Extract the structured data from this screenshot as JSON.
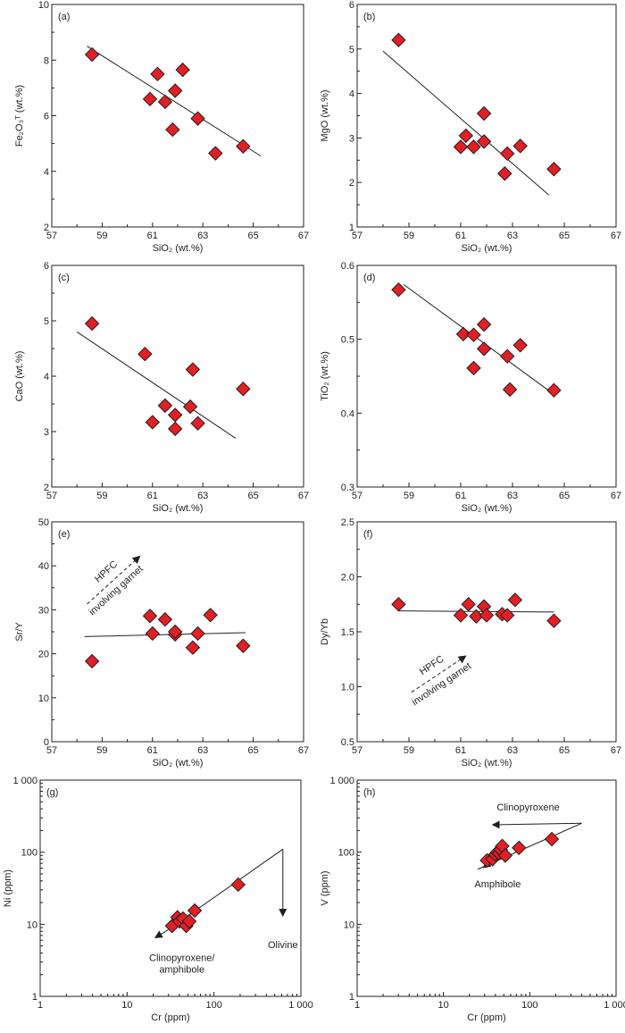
{
  "colors": {
    "marker_fill": "#e31e24",
    "marker_stroke": "#231f20",
    "line": "#231f20"
  },
  "chart_data": [
    {
      "id": "a",
      "type": "scatter",
      "panel_label": "(a)",
      "xlabel": "SiO₂ (wt.%)",
      "ylabel": "Fe₂O₃ᵀ (wt.%)",
      "xlim": [
        57,
        67
      ],
      "ylim": [
        2,
        10
      ],
      "xticks": [
        "57",
        "59",
        "61",
        "63",
        "65",
        "67"
      ],
      "yticks": [
        "2",
        "4",
        "6",
        "8",
        "10"
      ],
      "points": [
        [
          58.6,
          8.2
        ],
        [
          60.9,
          6.6
        ],
        [
          61.2,
          7.5
        ],
        [
          61.5,
          6.5
        ],
        [
          61.8,
          5.5
        ],
        [
          61.9,
          6.9
        ],
        [
          62.2,
          7.65
        ],
        [
          62.8,
          5.9
        ],
        [
          63.5,
          4.65
        ],
        [
          64.6,
          4.9
        ]
      ],
      "trend": [
        [
          58.4,
          8.5
        ],
        [
          65.3,
          4.55
        ]
      ]
    },
    {
      "id": "b",
      "type": "scatter",
      "panel_label": "(b)",
      "xlabel": "SiO₂ (wt.%)",
      "ylabel": "MgO (wt.%)",
      "xlim": [
        57,
        67
      ],
      "ylim": [
        1,
        6
      ],
      "xticks": [
        "57",
        "59",
        "61",
        "63",
        "65",
        "67"
      ],
      "yticks": [
        "1",
        "2",
        "3",
        "4",
        "5",
        "6"
      ],
      "points": [
        [
          58.6,
          5.2
        ],
        [
          61.0,
          2.8
        ],
        [
          61.2,
          3.05
        ],
        [
          61.5,
          2.8
        ],
        [
          61.9,
          2.92
        ],
        [
          61.9,
          3.55
        ],
        [
          62.7,
          2.2
        ],
        [
          62.8,
          2.65
        ],
        [
          63.3,
          2.82
        ],
        [
          64.6,
          2.3
        ]
      ],
      "trend": [
        [
          58.0,
          4.95
        ],
        [
          64.4,
          1.72
        ]
      ]
    },
    {
      "id": "c",
      "type": "scatter",
      "panel_label": "(c)",
      "xlabel": "SiO₂ (wt.%)",
      "ylabel": "CaO (wt.%)",
      "xlim": [
        57,
        67
      ],
      "ylim": [
        2,
        6
      ],
      "xticks": [
        "57",
        "59",
        "61",
        "63",
        "65",
        "67"
      ],
      "yticks": [
        "2",
        "3",
        "4",
        "5",
        "6"
      ],
      "points": [
        [
          58.6,
          4.95
        ],
        [
          60.7,
          4.4
        ],
        [
          61.0,
          3.17
        ],
        [
          61.5,
          3.47
        ],
        [
          61.9,
          3.05
        ],
        [
          61.9,
          3.3
        ],
        [
          62.5,
          3.45
        ],
        [
          62.6,
          4.12
        ],
        [
          62.8,
          3.15
        ],
        [
          64.6,
          3.77
        ]
      ],
      "trend": [
        [
          58.0,
          4.8
        ],
        [
          64.3,
          2.88
        ]
      ]
    },
    {
      "id": "d",
      "type": "scatter",
      "panel_label": "(d)",
      "xlabel": "SiO₂ (wt.%)",
      "ylabel": "TiO₂ (wt.%)",
      "xlim": [
        57,
        67
      ],
      "ylim": [
        0.3,
        0.6
      ],
      "xticks": [
        "57",
        "59",
        "61",
        "63",
        "65",
        "67"
      ],
      "yticks": [
        "0.3",
        "0.4",
        "0.5",
        "0.6"
      ],
      "points": [
        [
          58.6,
          0.567
        ],
        [
          61.1,
          0.507
        ],
        [
          61.5,
          0.506
        ],
        [
          61.5,
          0.461
        ],
        [
          61.9,
          0.52
        ],
        [
          61.9,
          0.487
        ],
        [
          62.8,
          0.477
        ],
        [
          62.9,
          0.432
        ],
        [
          63.3,
          0.492
        ],
        [
          64.6,
          0.431
        ]
      ],
      "trend": [
        [
          58.8,
          0.574
        ],
        [
          64.5,
          0.428
        ]
      ]
    },
    {
      "id": "e",
      "type": "scatter",
      "panel_label": "(e)",
      "xlabel": "SiO₂ (wt.%)",
      "ylabel": "Sr/Y",
      "xlim": [
        57,
        67
      ],
      "ylim": [
        0,
        50
      ],
      "xticks": [
        "57",
        "59",
        "61",
        "63",
        "65",
        "67"
      ],
      "yticks": [
        "0",
        "10",
        "20",
        "30",
        "40",
        "50"
      ],
      "points": [
        [
          58.6,
          18.3
        ],
        [
          60.9,
          28.6
        ],
        [
          61.0,
          24.6
        ],
        [
          61.5,
          27.8
        ],
        [
          61.9,
          24.4
        ],
        [
          61.9,
          25.0
        ],
        [
          62.6,
          21.4
        ],
        [
          62.8,
          24.6
        ],
        [
          63.3,
          28.8
        ],
        [
          64.6,
          21.8
        ]
      ],
      "trend": [
        [
          58.3,
          23.9
        ],
        [
          64.7,
          24.8
        ]
      ],
      "annotation": {
        "lines": [
          "HPFC",
          "involving garnet"
        ],
        "arrow_from": [
          58.4,
          31.3
        ],
        "arrow_to": [
          60.5,
          42.2
        ]
      }
    },
    {
      "id": "f",
      "type": "scatter",
      "panel_label": "(f)",
      "xlabel": "SiO₂ (wt.%)",
      "ylabel": "Dy/Yb",
      "xlim": [
        57,
        67
      ],
      "ylim": [
        0.5,
        2.5
      ],
      "xticks": [
        "57",
        "59",
        "61",
        "63",
        "65",
        "67"
      ],
      "yticks": [
        "0.5",
        "1.0",
        "1.5",
        "2.0",
        "2.5"
      ],
      "points": [
        [
          58.6,
          1.75
        ],
        [
          61.0,
          1.65
        ],
        [
          61.3,
          1.75
        ],
        [
          61.6,
          1.64
        ],
        [
          61.9,
          1.73
        ],
        [
          62.0,
          1.65
        ],
        [
          62.6,
          1.66
        ],
        [
          62.8,
          1.65
        ],
        [
          63.1,
          1.79
        ],
        [
          64.6,
          1.6
        ]
      ],
      "trend": [
        [
          58.6,
          1.69
        ],
        [
          64.6,
          1.68
        ]
      ],
      "annotation": {
        "lines": [
          "HPFC",
          "involving garnet"
        ],
        "arrow_from": [
          59.1,
          0.95
        ],
        "arrow_to": [
          61.2,
          1.28
        ]
      }
    },
    {
      "id": "g",
      "type": "scatter",
      "panel_label": "(g)",
      "scale": "log",
      "xlabel": "Cr (ppm)",
      "ylabel": "Ni (ppm)",
      "xlim": [
        1,
        1000
      ],
      "ylim": [
        1,
        1000
      ],
      "xticks": [
        "1",
        "10",
        "100",
        "1 000"
      ],
      "yticks": [
        "1",
        "10",
        "100",
        "1 000"
      ],
      "points": [
        [
          33,
          9.5
        ],
        [
          38,
          12.5
        ],
        [
          40,
          11
        ],
        [
          44,
          12
        ],
        [
          48,
          9.5
        ],
        [
          52,
          11
        ],
        [
          60,
          15.5
        ],
        [
          190,
          35.5
        ]
      ],
      "trend": [
        [
          28,
          8
        ],
        [
          620,
          110
        ]
      ],
      "vectors": [
        {
          "label": "Olivine",
          "from": [
            620,
            110
          ],
          "to": [
            620,
            13
          ]
        },
        {
          "label": "Clinopyroxene/\namphibole",
          "from": [
            28,
            8
          ],
          "to": [
            21,
            6.5
          ]
        }
      ]
    },
    {
      "id": "h",
      "type": "scatter",
      "panel_label": "(h)",
      "scale": "log",
      "xlabel": "Cr (ppm)",
      "ylabel": "V (ppm)",
      "xlim": [
        1,
        1000
      ],
      "ylim": [
        1,
        1000
      ],
      "xticks": [
        "1",
        "10",
        "100",
        "1 000"
      ],
      "yticks": [
        "1",
        "10",
        "100",
        "1 000"
      ],
      "points": [
        [
          32,
          77
        ],
        [
          37,
          80
        ],
        [
          40,
          93
        ],
        [
          42,
          100
        ],
        [
          44,
          97
        ],
        [
          46,
          108
        ],
        [
          48,
          122
        ],
        [
          52,
          90
        ],
        [
          75,
          115
        ],
        [
          180,
          152
        ]
      ],
      "trend": [
        [
          25,
          58
        ],
        [
          400,
          252
        ]
      ],
      "vectors": [
        {
          "label": "Clinopyroxene",
          "from": [
            400,
            252
          ],
          "to": [
            37,
            240
          ]
        },
        {
          "label": "Amphibole",
          "from": [
            40,
            82
          ],
          "to": [
            29,
            61
          ]
        }
      ]
    }
  ]
}
